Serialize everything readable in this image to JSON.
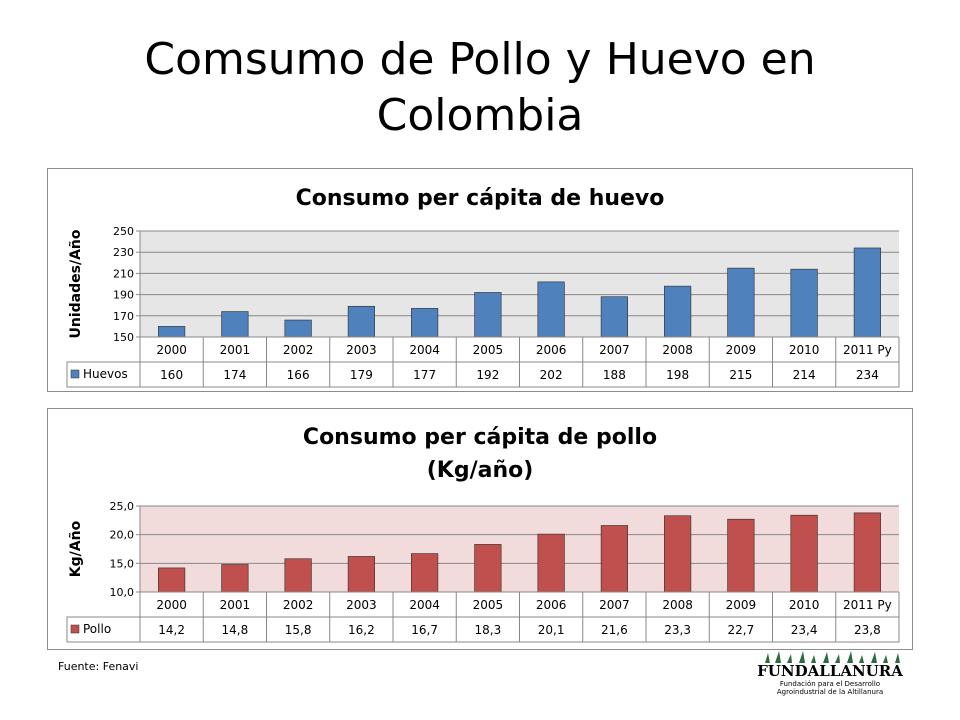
{
  "slide": {
    "title": "Comsumo de Pollo y Huevo en Colombia",
    "source": "Fuente: Fenavi",
    "logo": {
      "name": "FUNDALLANURA",
      "subtitle_1": "Fundación para el Desarrollo",
      "subtitle_2": "Agroindustrial de la Altillanura"
    }
  },
  "chart_data": [
    {
      "type": "bar",
      "title": "Consumo per cápita de huevo",
      "ylabel": "Unidades/Año",
      "ylim": [
        150,
        250
      ],
      "yticks": [
        "150",
        "170",
        "190",
        "210",
        "230",
        "250"
      ],
      "grid": true,
      "plot_background": "#e6e6e6",
      "categories": [
        "2000",
        "2001",
        "2002",
        "2003",
        "2004",
        "2005",
        "2006",
        "2007",
        "2008",
        "2009",
        "2010",
        "2011 Py"
      ],
      "series": [
        {
          "name": "Huevos",
          "color": "#4f81bd",
          "values": [
            160,
            174,
            166,
            179,
            177,
            192,
            202,
            188,
            198,
            215,
            214,
            234
          ],
          "labels": [
            "160",
            "174",
            "166",
            "179",
            "177",
            "192",
            "202",
            "188",
            "198",
            "215",
            "214",
            "234"
          ]
        }
      ],
      "legend": "data-table"
    },
    {
      "type": "bar",
      "title": "Consumo per cápita de pollo",
      "subtitle": "(Kg/año)",
      "ylabel": "Kg/Año",
      "ylim": [
        10,
        25
      ],
      "yticks": [
        "10,0",
        "15,0",
        "20,0",
        "25,0"
      ],
      "grid": true,
      "plot_background": "#f2dcdb",
      "categories": [
        "2000",
        "2001",
        "2002",
        "2003",
        "2004",
        "2005",
        "2006",
        "2007",
        "2008",
        "2009",
        "2010",
        "2011 Py"
      ],
      "series": [
        {
          "name": "Pollo",
          "color": "#c0504d",
          "values": [
            14.2,
            14.8,
            15.8,
            16.2,
            16.7,
            18.3,
            20.1,
            21.6,
            23.3,
            22.7,
            23.4,
            23.8
          ],
          "labels": [
            "14,2",
            "14,8",
            "15,8",
            "16,2",
            "16,7",
            "18,3",
            "20,1",
            "21,6",
            "23,3",
            "22,7",
            "23,4",
            "23,8"
          ]
        }
      ],
      "legend": "data-table"
    }
  ]
}
